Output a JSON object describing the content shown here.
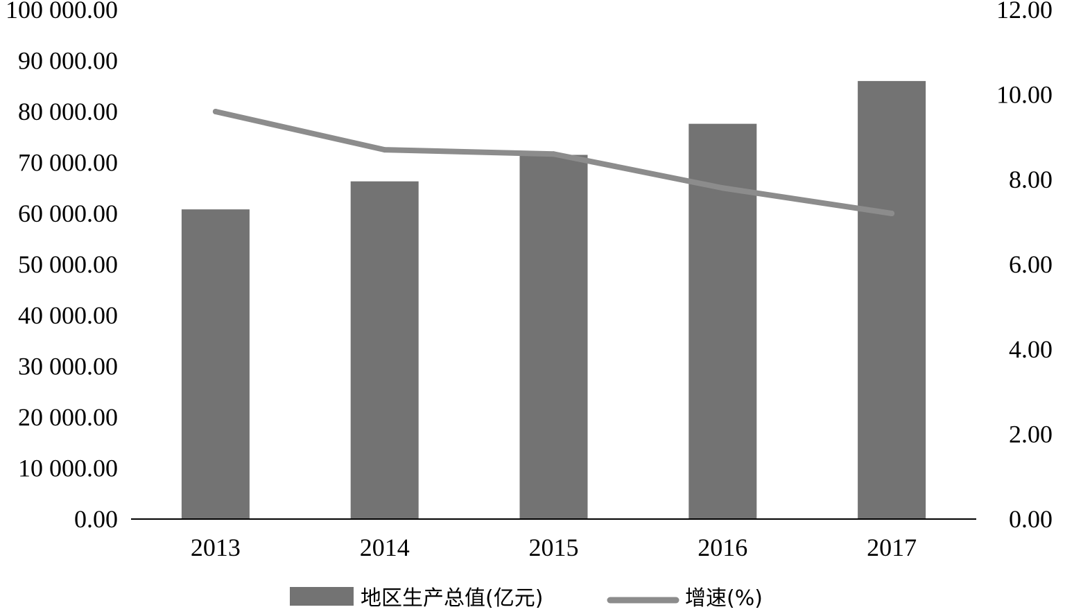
{
  "chart_data": {
    "type": "bar",
    "categories": [
      "2013",
      "2014",
      "2015",
      "2016",
      "2017"
    ],
    "series": [
      {
        "name": "地区生产总值(亿元)",
        "type": "bar",
        "axis": "left",
        "values": [
          60800,
          66300,
          71500,
          77600,
          86000
        ],
        "color": "#737373"
      },
      {
        "name": "增速(%)",
        "type": "line",
        "axis": "right",
        "values": [
          9.6,
          8.7,
          8.6,
          7.8,
          7.2
        ],
        "color": "#8c8c8c"
      }
    ],
    "y_left": {
      "min": 0,
      "max": 100000,
      "ticks": [
        "0.00",
        "10 000.00",
        "20 000.00",
        "30 000.00",
        "40 000.00",
        "50 000.00",
        "60 000.00",
        "70 000.00",
        "80 000.00",
        "90 000.00",
        "100 000.00"
      ]
    },
    "y_right": {
      "min": 0,
      "max": 12,
      "ticks": [
        "0.00",
        "2.00",
        "4.00",
        "6.00",
        "8.00",
        "10.00",
        "12.00"
      ]
    },
    "title": "",
    "xlabel": "",
    "ylabel": "",
    "grid": false,
    "legend": "bottom"
  }
}
